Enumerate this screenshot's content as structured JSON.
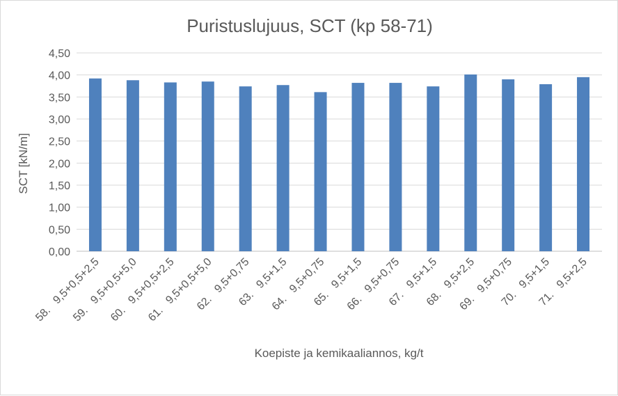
{
  "chart_data": {
    "type": "bar",
    "title": "Puristuslujuus, SCT (kp 58-71)",
    "xlabel": "Koepiste ja kemikaaliannos, kg/t",
    "ylabel": "SCT [kN/m]",
    "ylim": [
      0,
      4.5
    ],
    "yticks": [
      "0,00",
      "0,50",
      "1,00",
      "1,50",
      "2,00",
      "2,50",
      "3,00",
      "3,50",
      "4,00",
      "4,50"
    ],
    "grid": true,
    "legend": "none",
    "bar_color": "#4f81bd",
    "categories": [
      "58.   9,5+0,5+2,5",
      "59.   9,5+0,5+5,0",
      "60.   9,5+0,5+2,5",
      "61.   9,5+0,5+5,0",
      "62.   9,5+0,75",
      "63.   9,5+1,5",
      "64.   9,5+0,75",
      "65.   9,5+1,5",
      "66.   9,5+0,75",
      "67.   9,5+1,5",
      "68.   9,5+2,5",
      "69.   9,5+0,75",
      "70.   9,5+1,5",
      "71.   9,5+2,5"
    ],
    "values": [
      3.92,
      3.88,
      3.83,
      3.85,
      3.74,
      3.77,
      3.61,
      3.82,
      3.82,
      3.74,
      4.01,
      3.9,
      3.79,
      3.95
    ]
  }
}
